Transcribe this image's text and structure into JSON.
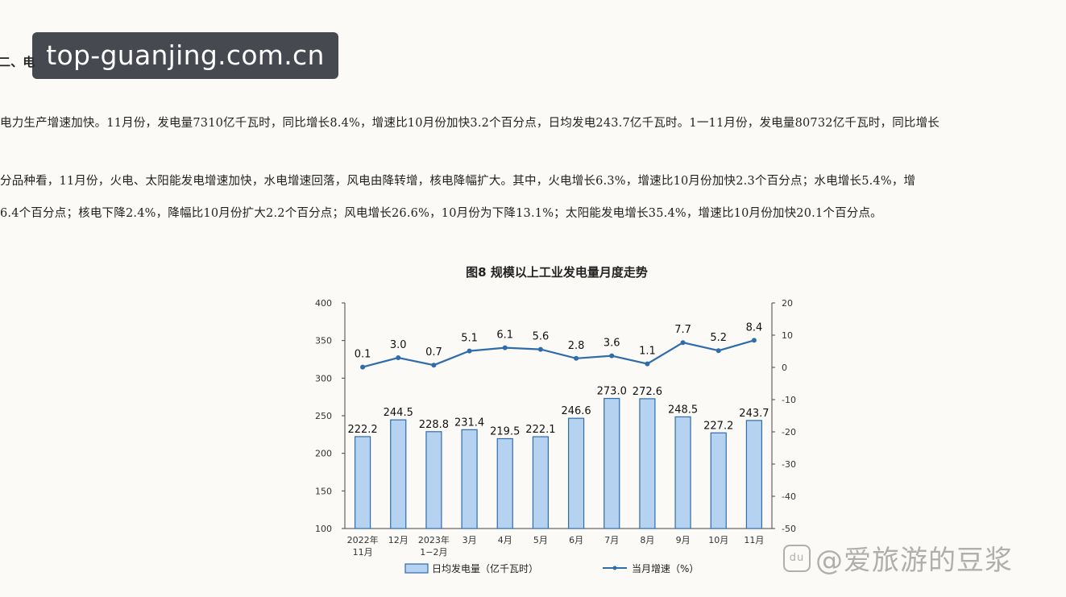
{
  "article": {
    "heading": "二、电",
    "p1": "电力生产增速加快。11月份，发电量7310亿千瓦时，同比增长8.4%，增速比10月份加快3.2个百分点，日均发电243.7亿千瓦时。1一11月份，发电量80732亿千瓦时，同比增长",
    "p2_line1": "分品种看，11月份，火电、太阳能发电增速加快，水电增速回落，风电由降转增，核电降幅扩大。其中，火电增长6.3%，增速比10月份加快2.3个百分点；水电增长5.4%，增",
    "p2_line2": "6.4个百分点；核电下降2.4%，降幅比10月份扩大2.2个百分点；风电增长26.6%，10月份为下降13.1%；太阳能发电增长35.4%，增速比10月份加快20.1个百分点。"
  },
  "overlay": {
    "text": "top-guanjing.com.cn"
  },
  "watermark": {
    "logo": "du",
    "text": "@爱旅游的豆浆"
  },
  "chart_data": {
    "type": "bar",
    "title": "图8  规模以上工业发电量月度走势",
    "categories": [
      [
        "2022年",
        "11月"
      ],
      [
        "12月"
      ],
      [
        "2023年",
        "1−2月"
      ],
      [
        "3月"
      ],
      [
        "4月"
      ],
      [
        "5月"
      ],
      [
        "6月"
      ],
      [
        "7月"
      ],
      [
        "8月"
      ],
      [
        "9月"
      ],
      [
        "10月"
      ],
      [
        "11月"
      ]
    ],
    "series": [
      {
        "name": "日均发电量（亿千瓦时）",
        "type": "bar",
        "axis": "left",
        "values": [
          222.2,
          244.5,
          228.8,
          231.4,
          219.5,
          222.1,
          246.6,
          273.0,
          272.6,
          248.5,
          227.2,
          243.7
        ],
        "labels": [
          "222.2",
          "244.5",
          "228.8",
          "231.4",
          "219.5",
          "222.1",
          "246.6",
          "273.0",
          "272.6",
          "248.5",
          "227.2",
          "243.7"
        ]
      },
      {
        "name": "当月增速（%）",
        "type": "line",
        "axis": "right",
        "values": [
          0.1,
          3.0,
          0.7,
          5.1,
          6.1,
          5.6,
          2.8,
          3.6,
          1.1,
          7.7,
          5.2,
          8.4
        ],
        "labels": [
          "0.1",
          "3.0",
          "0.7",
          "5.1",
          "6.1",
          "5.6",
          "2.8",
          "3.6",
          "1.1",
          "7.7",
          "5.2",
          "8.4"
        ]
      }
    ],
    "y_left": {
      "ylim": [
        100,
        400
      ],
      "ticks": [
        "100",
        "150",
        "200",
        "250",
        "300",
        "350",
        "400"
      ]
    },
    "y_right": {
      "ylim": [
        -50,
        20
      ],
      "ticks": [
        "-50",
        "-40",
        "-30",
        "-20",
        "-10",
        "0",
        "10",
        "20"
      ]
    },
    "legend": "bottom",
    "colors": {
      "bar_fill": "#b5d3f0",
      "bar_stroke": "#2f6cab",
      "line": "#2f6cab",
      "axis": "#444444"
    }
  }
}
